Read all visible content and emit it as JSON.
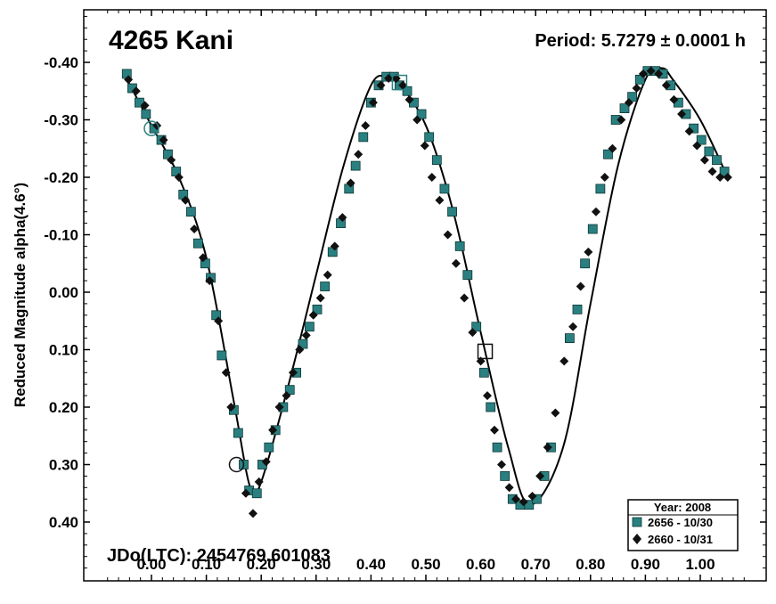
{
  "chart_data": {
    "type": "scatter",
    "title": "4265 Kani",
    "annotation_period": "Period: 5.7279 ± 0.0001 h",
    "annotation_jdo": "JDo(LTC): 2454769.601083",
    "ylabel": "Reduced Magnitude alpha(4.6°)",
    "xlim": [
      -0.12,
      1.12
    ],
    "ylim": [
      0.49,
      -0.49
    ],
    "y_inverted": true,
    "x_ticks": [
      "0.00",
      "0.10",
      "0.20",
      "0.30",
      "0.40",
      "0.50",
      "0.60",
      "0.70",
      "0.80",
      "0.90",
      "1.00"
    ],
    "x_tick_values": [
      0.0,
      0.1,
      0.2,
      0.3,
      0.4,
      0.5,
      0.6,
      0.7,
      0.8,
      0.9,
      1.0
    ],
    "y_ticks": [
      "-0.40",
      "-0.30",
      "-0.20",
      "-0.10",
      "0.00",
      "0.10",
      "0.20",
      "0.30",
      "0.40"
    ],
    "y_tick_values": [
      -0.4,
      -0.3,
      -0.2,
      -0.1,
      0.0,
      0.1,
      0.2,
      0.3,
      0.4
    ],
    "legend": {
      "title": "Year: 2008",
      "placement": "bottom-right",
      "entries": [
        {
          "label": "2656 - 10/30",
          "marker": "square",
          "color": "#2a8080"
        },
        {
          "label": "2660 - 10/31",
          "marker": "diamond",
          "color": "#111111"
        }
      ]
    },
    "series": [
      {
        "label": "2656 - 10/30",
        "marker": "square",
        "color": "#2a8080",
        "x": [
          -0.045,
          -0.035,
          -0.022,
          -0.01,
          0.005,
          0.018,
          0.03,
          0.045,
          0.058,
          0.072,
          0.085,
          0.098,
          0.108,
          0.118,
          0.128,
          0.15,
          0.158,
          0.168,
          0.178,
          0.192,
          0.202,
          0.214,
          0.226,
          0.24,
          0.252,
          0.264,
          0.276,
          0.288,
          0.302,
          0.316,
          0.33,
          0.345,
          0.36,
          0.372,
          0.386,
          0.4,
          0.414,
          0.428,
          0.442,
          0.452,
          0.466,
          0.478,
          0.492,
          0.506,
          0.52,
          0.534,
          0.548,
          0.562,
          0.576,
          0.592,
          0.606,
          0.618,
          0.63,
          0.644,
          0.658,
          0.672,
          0.688,
          0.702,
          0.716,
          0.728,
          0.762,
          0.776,
          0.79,
          0.804,
          0.818,
          0.832,
          0.846,
          0.862,
          0.876,
          0.89,
          0.904,
          0.918,
          0.932,
          0.946,
          0.96,
          0.974,
          0.988,
          1.002,
          1.016,
          1.03,
          1.044
        ],
        "y": [
          -0.38,
          -0.355,
          -0.33,
          -0.31,
          -0.285,
          -0.265,
          -0.24,
          -0.21,
          -0.17,
          -0.14,
          -0.085,
          -0.05,
          -0.025,
          0.04,
          0.11,
          0.205,
          0.245,
          0.3,
          0.345,
          0.35,
          0.3,
          0.27,
          0.24,
          0.2,
          0.17,
          0.14,
          0.09,
          0.06,
          0.03,
          -0.01,
          -0.07,
          -0.12,
          -0.18,
          -0.22,
          -0.27,
          -0.33,
          -0.36,
          -0.375,
          -0.375,
          -0.36,
          -0.35,
          -0.33,
          -0.31,
          -0.27,
          -0.23,
          -0.18,
          -0.14,
          -0.08,
          -0.03,
          0.06,
          0.14,
          0.2,
          0.27,
          0.32,
          0.36,
          0.37,
          0.37,
          0.36,
          0.32,
          0.27,
          0.08,
          0.03,
          -0.05,
          -0.11,
          -0.18,
          -0.24,
          -0.3,
          -0.32,
          -0.34,
          -0.37,
          -0.385,
          -0.385,
          -0.38,
          -0.36,
          -0.33,
          -0.31,
          -0.285,
          -0.265,
          -0.245,
          -0.23,
          -0.21
        ]
      },
      {
        "label": "2660 - 10/31",
        "marker": "diamond",
        "color": "#111111",
        "x": [
          -0.042,
          -0.028,
          -0.012,
          0.01,
          0.022,
          0.036,
          0.05,
          0.062,
          0.078,
          0.094,
          0.106,
          0.122,
          0.136,
          0.145,
          0.172,
          0.185,
          0.196,
          0.209,
          0.221,
          0.233,
          0.246,
          0.258,
          0.27,
          0.282,
          0.295,
          0.308,
          0.321,
          0.334,
          0.348,
          0.363,
          0.377,
          0.39,
          0.404,
          0.418,
          0.432,
          0.446,
          0.458,
          0.47,
          0.484,
          0.498,
          0.511,
          0.525,
          0.54,
          0.555,
          0.57,
          0.585,
          0.6,
          0.612,
          0.625,
          0.638,
          0.652,
          0.664,
          0.678,
          0.694,
          0.708,
          0.722,
          0.736,
          0.752,
          0.768,
          0.782,
          0.796,
          0.81,
          0.826,
          0.84,
          0.856,
          0.87,
          0.884,
          0.896,
          0.91,
          0.924,
          0.938,
          0.952,
          0.966,
          0.98,
          0.994,
          1.008,
          1.022,
          1.036,
          1.05
        ],
        "y": [
          -0.37,
          -0.35,
          -0.325,
          -0.29,
          -0.265,
          -0.23,
          -0.2,
          -0.16,
          -0.11,
          -0.06,
          -0.02,
          0.05,
          0.14,
          0.2,
          0.35,
          0.385,
          0.33,
          0.295,
          0.24,
          0.2,
          0.18,
          0.14,
          0.1,
          0.075,
          0.04,
          0.01,
          -0.03,
          -0.08,
          -0.13,
          -0.19,
          -0.24,
          -0.29,
          -0.33,
          -0.36,
          -0.372,
          -0.372,
          -0.36,
          -0.335,
          -0.3,
          -0.255,
          -0.2,
          -0.16,
          -0.1,
          -0.05,
          0.01,
          0.07,
          0.12,
          0.18,
          0.24,
          0.3,
          0.34,
          0.36,
          0.365,
          0.355,
          0.32,
          0.27,
          0.21,
          0.12,
          0.06,
          -0.01,
          -0.07,
          -0.14,
          -0.2,
          -0.25,
          -0.3,
          -0.33,
          -0.355,
          -0.38,
          -0.385,
          -0.38,
          -0.36,
          -0.335,
          -0.31,
          -0.28,
          -0.255,
          -0.23,
          -0.21,
          -0.2,
          -0.2
        ]
      }
    ],
    "fit_curve": {
      "type": "fourier",
      "points_x": [
        -0.05,
        0.0,
        0.05,
        0.1,
        0.15,
        0.18,
        0.2,
        0.25,
        0.3,
        0.35,
        0.4,
        0.43,
        0.45,
        0.5,
        0.55,
        0.6,
        0.65,
        0.69,
        0.75,
        0.8,
        0.85,
        0.9,
        0.93,
        0.95,
        1.0,
        1.05
      ],
      "points_y": [
        -0.38,
        -0.29,
        -0.2,
        -0.06,
        0.19,
        0.34,
        0.33,
        0.16,
        -0.03,
        -0.22,
        -0.36,
        -0.375,
        -0.365,
        -0.29,
        -0.14,
        0.07,
        0.27,
        0.37,
        0.27,
        0.02,
        -0.22,
        -0.37,
        -0.39,
        -0.37,
        -0.3,
        -0.2
      ]
    },
    "highlights": [
      {
        "shape": "circle",
        "x": 0.0,
        "y": -0.285,
        "color": "#2a8080"
      },
      {
        "shape": "square",
        "x": 0.452,
        "y": -0.365,
        "color": "#2a8080"
      },
      {
        "shape": "circle",
        "x": 0.155,
        "y": 0.3,
        "color": "#111111"
      },
      {
        "shape": "square",
        "x": 0.608,
        "y": 0.103,
        "color": "#111111"
      }
    ]
  }
}
